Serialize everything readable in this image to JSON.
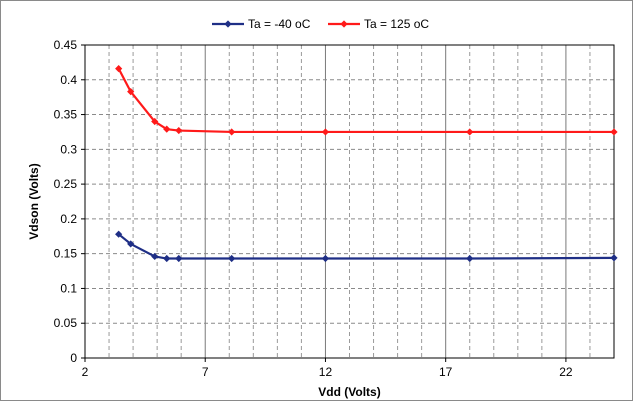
{
  "chart_data": {
    "type": "line",
    "title": "",
    "xlabel": "Vdd (Volts)",
    "ylabel": "Vdson (Volts)",
    "xlim": [
      2,
      24
    ],
    "ylim": [
      0,
      0.45
    ],
    "xticks": [
      2,
      7,
      12,
      17,
      22
    ],
    "xtick_labels": [
      "2",
      "7",
      "12",
      "17",
      "22"
    ],
    "yticks": [
      0,
      0.05,
      0.1,
      0.15,
      0.2,
      0.25,
      0.3,
      0.35,
      0.4,
      0.45
    ],
    "ytick_labels": [
      "0",
      "0.05",
      "0.1",
      "0.15",
      "0.2",
      "0.25",
      "0.3",
      "0.35",
      "0.4",
      "0.45"
    ],
    "grid": true,
    "legend_position": "top-center",
    "series": [
      {
        "name": "Ta = -40 oC",
        "color": "#1f2f86",
        "marker": "diamond",
        "x": [
          3.4,
          3.9,
          4.9,
          5.4,
          5.9,
          8.1,
          12,
          18,
          24
        ],
        "y": [
          0.178,
          0.164,
          0.146,
          0.143,
          0.143,
          0.143,
          0.143,
          0.143,
          0.144
        ]
      },
      {
        "name": "Ta = 125 oC",
        "color": "#ff1a1a",
        "marker": "diamond",
        "x": [
          3.4,
          3.9,
          4.9,
          5.4,
          5.9,
          8.1,
          12,
          18,
          24
        ],
        "y": [
          0.416,
          0.383,
          0.34,
          0.329,
          0.327,
          0.325,
          0.325,
          0.325,
          0.325
        ]
      }
    ]
  }
}
